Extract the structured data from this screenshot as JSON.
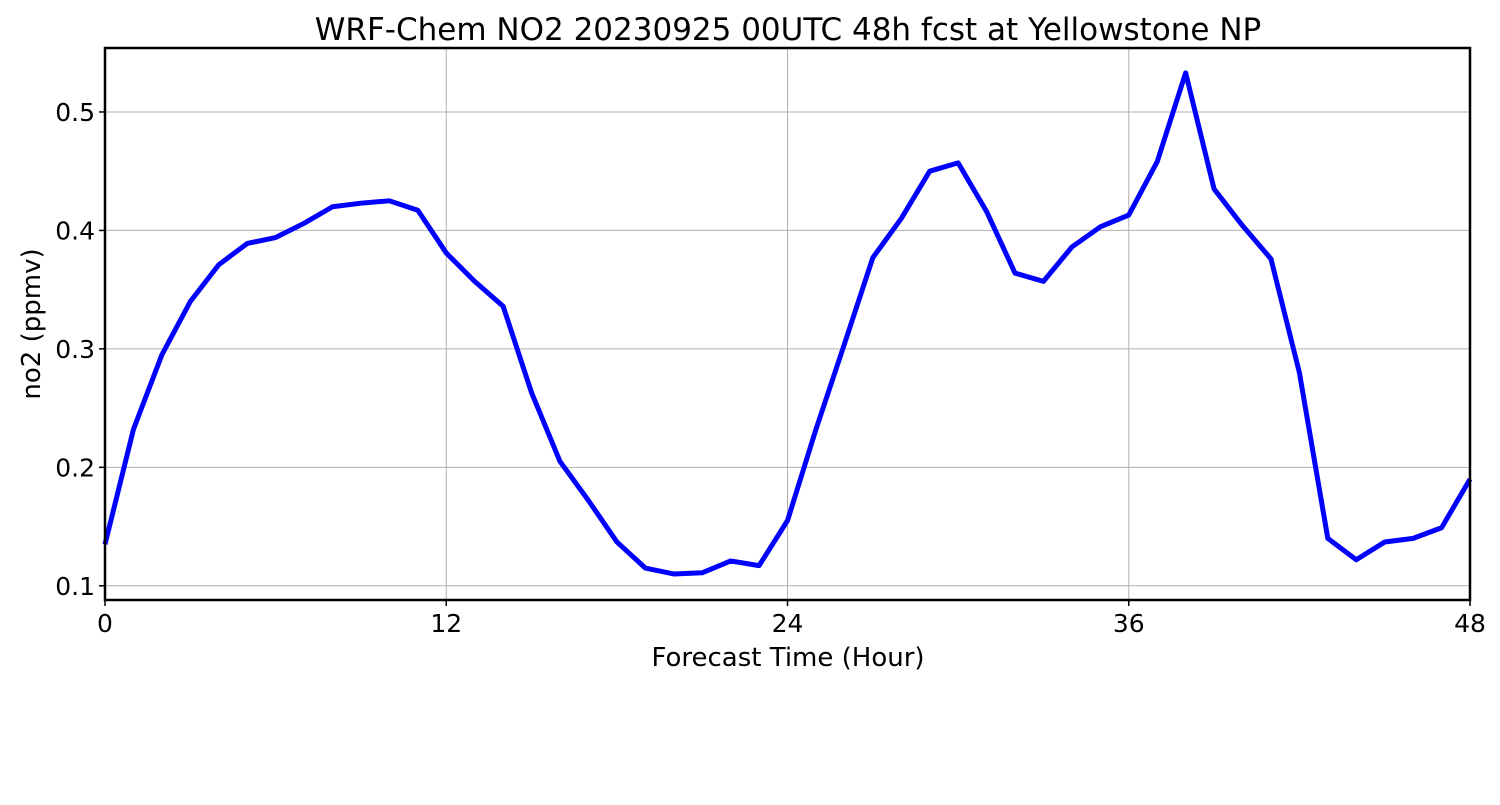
{
  "chart_data": {
    "type": "line",
    "title": "WRF-Chem NO2  20230925 00UTC 48h fcst at Yellowstone NP",
    "xlabel": "Forecast Time (Hour)",
    "ylabel": "no2  (ppmv)",
    "xlim": [
      0,
      48
    ],
    "ylim": [
      0.088,
      0.554
    ],
    "xticks": [
      0,
      12,
      24,
      36,
      48
    ],
    "xtick_labels": [
      "0",
      "12",
      "24",
      "36",
      "48"
    ],
    "yticks": [
      0.1,
      0.2,
      0.3,
      0.4,
      0.5
    ],
    "ytick_labels": [
      "0.1",
      "0.2",
      "0.3",
      "0.4",
      "0.5"
    ],
    "grid": true,
    "series": [
      {
        "color": "#0000ff",
        "x": [
          0,
          1,
          2,
          3,
          4,
          5,
          6,
          7,
          8,
          9,
          10,
          11,
          12,
          13,
          14,
          15,
          16,
          17,
          18,
          19,
          20,
          21,
          22,
          23,
          24,
          25,
          26,
          27,
          28,
          29,
          30,
          31,
          32,
          33,
          34,
          35,
          36,
          37,
          38,
          39,
          40,
          41,
          42,
          43,
          44,
          45,
          46,
          47,
          48
        ],
        "y": [
          0.135,
          0.232,
          0.295,
          0.34,
          0.371,
          0.389,
          0.394,
          0.406,
          0.42,
          0.423,
          0.425,
          0.417,
          0.381,
          0.357,
          0.336,
          0.263,
          0.205,
          0.172,
          0.137,
          0.115,
          0.11,
          0.111,
          0.121,
          0.117,
          0.155,
          0.232,
          0.304,
          0.377,
          0.41,
          0.45,
          0.457,
          0.416,
          0.364,
          0.357,
          0.386,
          0.403,
          0.413,
          0.458,
          0.533,
          0.435,
          0.404,
          0.376,
          0.28,
          0.14,
          0.122,
          0.137,
          0.14,
          0.149,
          0.19
        ]
      }
    ]
  }
}
